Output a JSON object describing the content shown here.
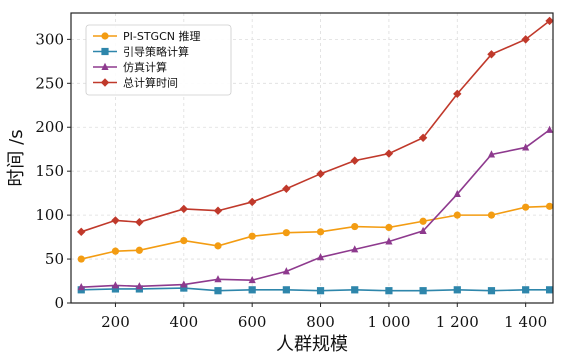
{
  "chart_data": {
    "type": "line",
    "title": "",
    "xlabel": "人群规模",
    "ylabel": "时间 /s",
    "xlim": [
      70,
      1480
    ],
    "ylim": [
      0,
      330
    ],
    "x_ticks": [
      200,
      400,
      600,
      800,
      1000,
      1200,
      1400
    ],
    "x_tick_labels": [
      "200",
      "400",
      "600",
      "800",
      "1 000",
      "1 200",
      "1 400"
    ],
    "y_ticks": [
      0,
      50,
      100,
      150,
      200,
      250,
      300
    ],
    "y_tick_labels": [
      "0",
      "50",
      "100",
      "150",
      "200",
      "250",
      "300"
    ],
    "grid": true,
    "legend_position": "top-left",
    "x": [
      100,
      200,
      270,
      400,
      500,
      600,
      700,
      800,
      900,
      1000,
      1100,
      1200,
      1300,
      1400,
      1470
    ],
    "series": [
      {
        "name": "PI-STGCN 推理",
        "color": "#f39c12",
        "marker": "circle",
        "values": [
          50,
          59,
          60,
          71,
          65,
          76,
          80,
          81,
          87,
          86,
          93,
          100,
          100,
          109,
          110
        ]
      },
      {
        "name": "引导策略计算",
        "color": "#2e86ab",
        "marker": "square",
        "values": [
          15,
          16,
          16,
          17,
          14,
          15,
          15,
          14,
          15,
          14,
          14,
          15,
          14,
          15,
          15
        ]
      },
      {
        "name": "仿真计算",
        "color": "#8e3a8e",
        "marker": "triangle",
        "values": [
          18,
          20,
          19,
          21,
          27,
          26,
          36,
          52,
          61,
          70,
          82,
          124,
          169,
          177,
          197
        ]
      },
      {
        "name": "总计算时间",
        "color": "#c0392b",
        "marker": "diamond",
        "values": [
          81,
          94,
          92,
          107,
          105,
          115,
          130,
          147,
          162,
          170,
          188,
          238,
          283,
          300,
          321
        ]
      }
    ]
  }
}
